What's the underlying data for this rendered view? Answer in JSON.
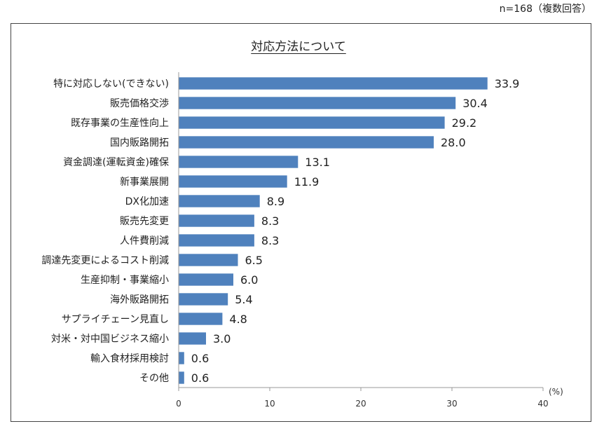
{
  "header": {
    "sample_note": "n=168（複数回答）"
  },
  "chart_data": {
    "type": "bar",
    "orientation": "horizontal",
    "title": "対応方法について",
    "unit_label": "(%)",
    "categories": [
      "特に対応しない(できない)",
      "販売価格交渉",
      "既存事業の生産性向上",
      "国内販路開拓",
      "資金調達(運転資金)確保",
      "新事業展開",
      "DX化加速",
      "販売先変更",
      "人件費削減",
      "調達先変更によるコスト削減",
      "生産抑制・事業縮小",
      "海外販路開拓",
      "サプライチェーン見直し",
      "対米・対中国ビジネス縮小",
      "輸入食材採用検討",
      "その他"
    ],
    "values": [
      33.9,
      30.4,
      29.2,
      28.0,
      13.1,
      11.9,
      8.9,
      8.3,
      8.3,
      6.5,
      6.0,
      5.4,
      4.8,
      3.0,
      0.6,
      0.6
    ],
    "value_labels": [
      "33.9",
      "30.4",
      "29.2",
      "28.0",
      "13.1",
      "11.9",
      "8.9",
      "8.3",
      "8.3",
      "6.5",
      "6.0",
      "5.4",
      "4.8",
      "3.0",
      "0.6",
      "0.6"
    ],
    "xlim": [
      0,
      40
    ],
    "xticks": [
      0,
      10,
      20,
      30,
      40
    ],
    "bar_color": "#4f81bd",
    "grid": false
  }
}
